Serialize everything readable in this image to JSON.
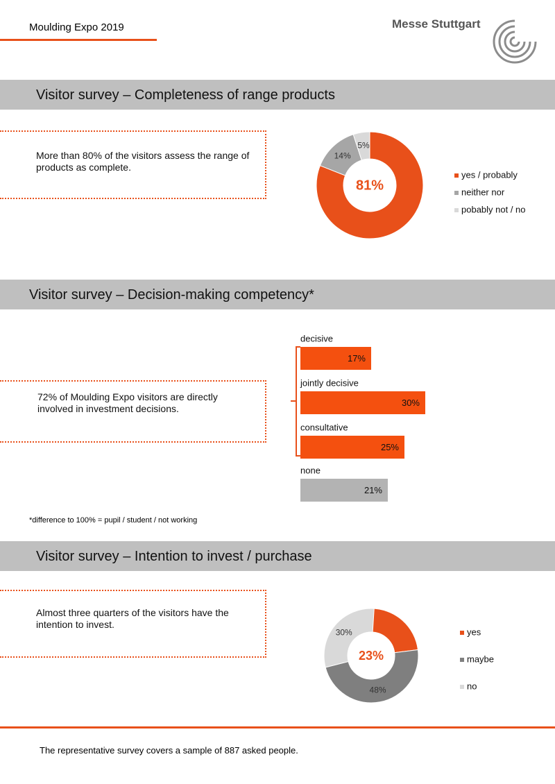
{
  "header": {
    "event": "Moulding Expo 2019",
    "brand": "Messe Stuttgart"
  },
  "sections": [
    {
      "title": "Visitor survey  – Completeness of range products",
      "text": "More than 80% of the visitors assess the range of products as complete.",
      "chart": {
        "type": "donut",
        "categories": [
          "yes / probably",
          "neither nor",
          "pobably not / no"
        ],
        "values": [
          81,
          14,
          5
        ],
        "value_labels": [
          "81%",
          "14%",
          "5%"
        ],
        "colors": [
          "#e8501a",
          "#a6a6a6",
          "#d9d9d9"
        ]
      }
    },
    {
      "title": "Visitor survey – Decision-making competency*",
      "text": "72% of Moulding  Expo visitors are directly involved in investment decisions.",
      "chart": {
        "type": "bar",
        "categories": [
          "decisive",
          "jointly decisive",
          "consultative",
          "none"
        ],
        "values": [
          17,
          30,
          25,
          21
        ],
        "value_labels": [
          "17%",
          "30%",
          "25%",
          "21%"
        ],
        "colors": [
          "#f4500f",
          "#f4500f",
          "#f4500f",
          "#b3b3b3"
        ]
      },
      "note": "*difference to 100% = pupil / student / not working"
    },
    {
      "title": "Visitor survey –  Intention to invest / purchase",
      "text": "Almost three quarters of the visitors have the intention to invest.",
      "chart": {
        "type": "donut",
        "categories": [
          "yes",
          "maybe",
          "no"
        ],
        "values": [
          23,
          48,
          30
        ],
        "value_labels": [
          "23%",
          "48%",
          "30%"
        ],
        "colors": [
          "#e8501a",
          "#7f7f7f",
          "#d9d9d9"
        ]
      }
    }
  ],
  "footer": "The representative survey covers a sample of 887 asked people."
}
